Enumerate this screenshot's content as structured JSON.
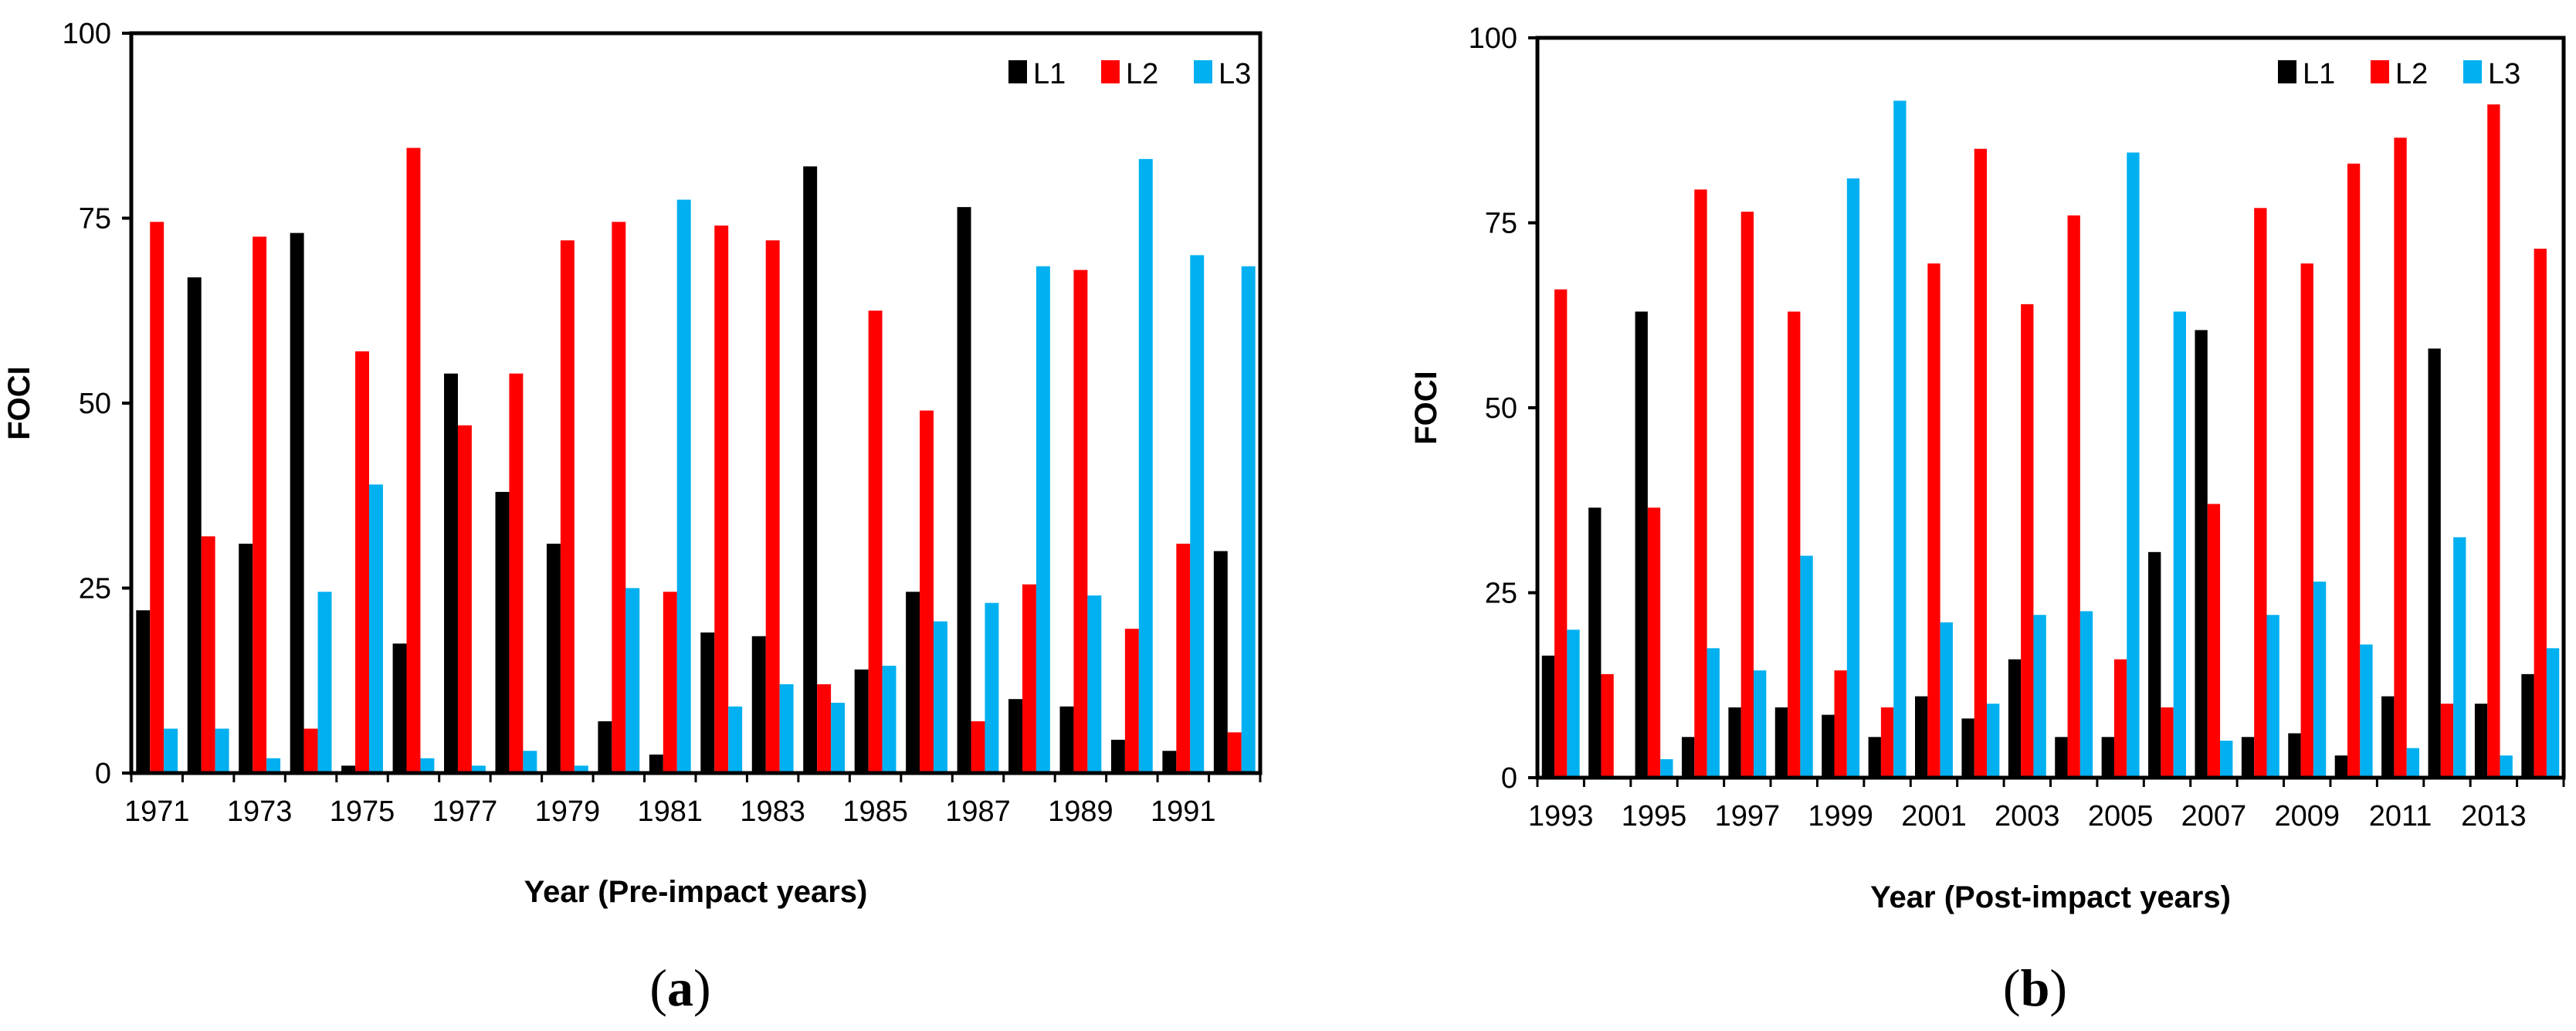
{
  "colors": {
    "L1": "#000000",
    "L2": "#ff0000",
    "L3": "#00b0f0"
  },
  "chart_data": [
    {
      "type": "bar",
      "panel": "a",
      "panel_label": [
        "(",
        "a",
        ")"
      ],
      "xlabel": "Year (Pre-impact years)",
      "ylabel": "FOCI",
      "ylim": [
        0,
        100
      ],
      "yticks": [
        0,
        25,
        50,
        75,
        100
      ],
      "legend_position": "top-right",
      "categories": [
        "1971",
        "1972",
        "1973",
        "1974",
        "1975",
        "1976",
        "1977",
        "1978",
        "1979",
        "1980",
        "1981",
        "1982",
        "1983",
        "1984",
        "1985",
        "1986",
        "1987",
        "1988",
        "1989",
        "1990",
        "1991",
        "1992"
      ],
      "xtick_labels": [
        "1971",
        "1973",
        "1975",
        "1977",
        "1979",
        "1981",
        "1983",
        "1985",
        "1987",
        "1989",
        "1991"
      ],
      "series": [
        {
          "name": "L1",
          "values": [
            22,
            67,
            31,
            73,
            1,
            17.5,
            54,
            38,
            31,
            7,
            2.5,
            19,
            18.5,
            82,
            14,
            24.5,
            76.5,
            10,
            9,
            4.5,
            3,
            30
          ]
        },
        {
          "name": "L2",
          "values": [
            74.5,
            32,
            72.5,
            6,
            57,
            84.5,
            47,
            54,
            72,
            74.5,
            24.5,
            74,
            72,
            12,
            62.5,
            49,
            7,
            25.5,
            68,
            19.5,
            31,
            5.5
          ]
        },
        {
          "name": "L3",
          "values": [
            6,
            6,
            2,
            24.5,
            39,
            2,
            1,
            3,
            1,
            25,
            77.5,
            9,
            12,
            9.5,
            14.5,
            20.5,
            23,
            68.5,
            24,
            83,
            70,
            68.5
          ]
        }
      ]
    },
    {
      "type": "bar",
      "panel": "b",
      "panel_label": [
        "(",
        "b",
        ")"
      ],
      "xlabel": "Year (Post-impact years)",
      "ylabel": "FOCI",
      "ylim": [
        0,
        100
      ],
      "yticks": [
        0,
        25,
        50,
        75,
        100
      ],
      "legend_position": "top-right",
      "categories": [
        "1993",
        "1994",
        "1995",
        "1996",
        "1997",
        "1998",
        "1999",
        "2000",
        "2001",
        "2002",
        "2003",
        "2004",
        "2005",
        "2006",
        "2007",
        "2008",
        "2009",
        "2010",
        "2011",
        "2012",
        "2013",
        "2014"
      ],
      "xtick_labels": [
        "1993",
        "1995",
        "1997",
        "1999",
        "2001",
        "2003",
        "2005",
        "2007",
        "2009",
        "2011",
        "2013"
      ],
      "series": [
        {
          "name": "L1",
          "values": [
            16.5,
            36.5,
            63,
            5.5,
            9.5,
            9.5,
            8.5,
            5.5,
            11,
            8,
            16,
            5.5,
            5.5,
            30.5,
            60.5,
            5.5,
            6,
            3,
            11,
            58,
            10,
            14
          ]
        },
        {
          "name": "L2",
          "values": [
            66,
            14,
            36.5,
            79.5,
            76.5,
            63,
            14.5,
            9.5,
            69.5,
            85,
            64,
            76,
            16,
            9.5,
            37,
            77,
            69.5,
            83,
            86.5,
            10,
            91,
            71.5
          ]
        },
        {
          "name": "L3",
          "values": [
            20,
            0,
            2.5,
            17.5,
            14.5,
            30,
            81,
            91.5,
            21,
            10,
            22,
            22.5,
            84.5,
            63,
            5,
            22,
            26.5,
            18,
            4,
            32.5,
            3,
            17.5
          ]
        }
      ]
    }
  ]
}
